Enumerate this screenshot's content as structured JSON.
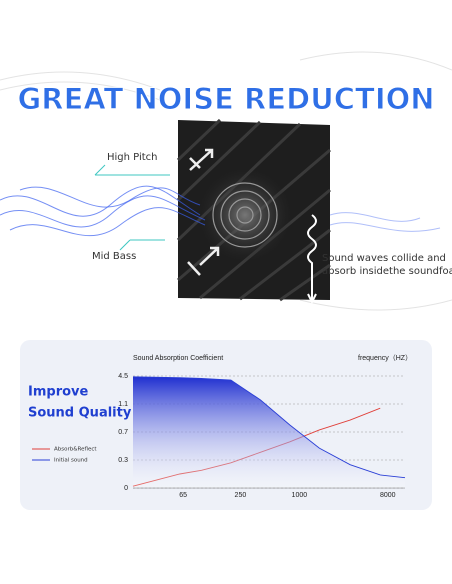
{
  "title": "GREAT NOISE REDUCTION",
  "callouts": [
    "High Pitch",
    "Mid Bass",
    "Sound waves collide and",
    "absorb insidethe soundfoam."
  ],
  "headline": [
    "Improve",
    "Sound Quality"
  ],
  "chart_data": {
    "type": "line",
    "title": "Sound Absorption Coefficient",
    "x_label": "frequency（HZ）",
    "x": [
      20,
      60,
      100,
      200,
      400,
      800,
      1600,
      3300,
      6700,
      12000
    ],
    "series": [
      {
        "name": "Absorb&Reflect",
        "color": "#e0403a",
        "values": [
          0.02,
          0.15,
          0.19,
          0.27,
          0.41,
          0.56,
          0.73,
          0.87,
          1.04,
          null
        ]
      },
      {
        "name": "Initial sound",
        "color": "#2a3fd6",
        "fill": "area",
        "values": [
          4.4,
          4.3,
          4.2,
          4.0,
          1.6,
          0.8,
          0.47,
          0.25,
          0.14,
          0.11
        ]
      }
    ],
    "xlim": [
      20,
      12000
    ],
    "xticks": [
      65,
      250,
      1000,
      8000
    ],
    "xscale": "log",
    "ylim": [
      0,
      4.5
    ],
    "yticks": [
      0,
      0.3,
      0.7,
      1.1,
      4.5
    ],
    "yscale": "tick-spaced",
    "grid": true
  }
}
